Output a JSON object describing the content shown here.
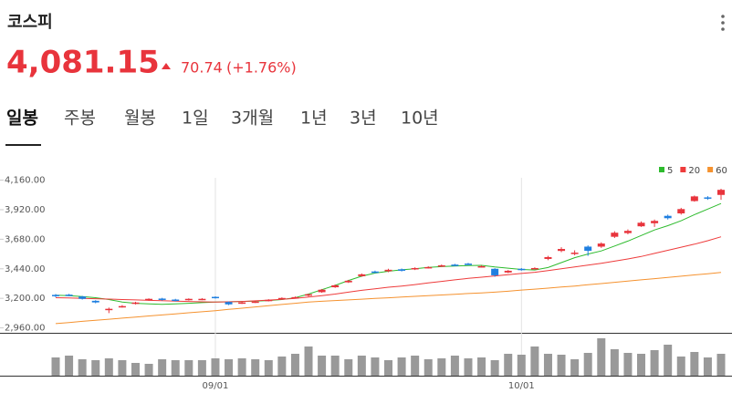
{
  "header": {
    "title": "코스피",
    "price": "4,081.15",
    "change": "70.74",
    "change_percent": "(+1.76%)"
  },
  "tabs": [
    "일봉",
    "주봉",
    "월봉",
    "1일",
    "3개월",
    "1년",
    "3년",
    "10년"
  ],
  "chart_data": {
    "type": "candlestick",
    "categories": [
      null,
      null,
      null,
      null,
      null,
      null,
      null,
      null,
      null,
      null,
      null,
      null,
      "09/01",
      null,
      null,
      null,
      null,
      null,
      null,
      null,
      null,
      null,
      null,
      null,
      null,
      null,
      null,
      null,
      null,
      null,
      null,
      null,
      null,
      null,
      null,
      "10/01",
      null,
      null,
      null,
      null,
      null,
      null,
      null,
      null,
      null,
      null,
      null,
      null,
      null,
      null,
      null
    ],
    "open": [
      3228,
      3230,
      3215,
      3180,
      3105,
      3130,
      3158,
      3185,
      3198,
      3190,
      3188,
      3190,
      3212,
      3170,
      3160,
      3168,
      3180,
      3195,
      3204,
      3222,
      3250,
      3290,
      3330,
      3380,
      3418,
      3420,
      3436,
      3436,
      3448,
      3460,
      3474,
      3482,
      3455,
      3440,
      3410,
      3440,
      3440,
      3520,
      3585,
      3560,
      3620,
      3620,
      3700,
      3730,
      3785,
      3810,
      3870,
      3890,
      3990,
      4020,
      4040
    ],
    "high": [
      3235,
      3236,
      3220,
      3185,
      3125,
      3145,
      3172,
      3200,
      3204,
      3196,
      3200,
      3202,
      3216,
      3175,
      3172,
      3180,
      3193,
      3208,
      3215,
      3238,
      3276,
      3312,
      3350,
      3402,
      3425,
      3440,
      3442,
      3452,
      3460,
      3475,
      3480,
      3488,
      3468,
      3445,
      3430,
      3446,
      3452,
      3545,
      3615,
      3590,
      3630,
      3655,
      3745,
      3760,
      3825,
      3840,
      3880,
      3935,
      4035,
      4030,
      4090
    ],
    "low": [
      3210,
      3218,
      3190,
      3160,
      3080,
      3125,
      3150,
      3180,
      3182,
      3175,
      3182,
      3185,
      3198,
      3145,
      3155,
      3162,
      3175,
      3190,
      3198,
      3215,
      3245,
      3285,
      3325,
      3375,
      3405,
      3412,
      3418,
      3430,
      3442,
      3455,
      3462,
      3470,
      3450,
      3375,
      3405,
      3425,
      3435,
      3510,
      3575,
      3550,
      3545,
      3610,
      3690,
      3720,
      3780,
      3780,
      3840,
      3880,
      3985,
      4000,
      4000
    ],
    "close": [
      3218,
      3225,
      3196,
      3167,
      3115,
      3137,
      3166,
      3196,
      3188,
      3181,
      3196,
      3196,
      3203,
      3151,
      3167,
      3174,
      3188,
      3203,
      3210,
      3233,
      3270,
      3306,
      3343,
      3395,
      3410,
      3432,
      3424,
      3446,
      3454,
      3468,
      3468,
      3476,
      3461,
      3387,
      3424,
      3432,
      3446,
      3535,
      3601,
      3571,
      3586,
      3645,
      3733,
      3748,
      3814,
      3829,
      3851,
      3925,
      4028,
      4010.41,
      4081.15
    ],
    "up_color": "#e8343c",
    "down_color": "#1f7fe0",
    "moving_averages": [
      {
        "name": "5",
        "color": "#2dbb2d",
        "values": [
          3225,
          3222,
          3215,
          3205,
          3190,
          3170,
          3160,
          3155,
          3152,
          3155,
          3160,
          3165,
          3170,
          3172,
          3175,
          3178,
          3182,
          3190,
          3205,
          3235,
          3270,
          3305,
          3345,
          3380,
          3405,
          3420,
          3432,
          3440,
          3452,
          3458,
          3462,
          3466,
          3468,
          3455,
          3445,
          3435,
          3430,
          3450,
          3490,
          3530,
          3560,
          3585,
          3625,
          3665,
          3710,
          3755,
          3790,
          3830,
          3880,
          3925,
          3970
        ]
      },
      {
        "name": "20",
        "color": "#ee3b3b",
        "values": [
          3205,
          3203,
          3200,
          3197,
          3194,
          3190,
          3187,
          3184,
          3181,
          3178,
          3175,
          3172,
          3170,
          3172,
          3175,
          3180,
          3186,
          3192,
          3200,
          3210,
          3222,
          3235,
          3250,
          3265,
          3278,
          3290,
          3300,
          3312,
          3325,
          3338,
          3350,
          3362,
          3372,
          3382,
          3392,
          3402,
          3412,
          3425,
          3440,
          3455,
          3470,
          3485,
          3502,
          3520,
          3540,
          3565,
          3590,
          3615,
          3640,
          3668,
          3700
        ]
      },
      {
        "name": "60",
        "color": "#f5922f",
        "values": [
          2995,
          3004,
          3013,
          3022,
          3030,
          3039,
          3048,
          3057,
          3065,
          3074,
          3083,
          3091,
          3100,
          3110,
          3120,
          3130,
          3140,
          3150,
          3160,
          3170,
          3176,
          3182,
          3187,
          3193,
          3199,
          3204,
          3210,
          3216,
          3222,
          3227,
          3233,
          3239,
          3244,
          3250,
          3258,
          3267,
          3275,
          3283,
          3292,
          3300,
          3310,
          3320,
          3330,
          3340,
          3350,
          3360,
          3370,
          3380,
          3390,
          3400,
          3410
        ]
      }
    ],
    "volume": {
      "color": "#999999",
      "ylim": [
        0,
        45
      ],
      "values": [
        20,
        22,
        18,
        17,
        19,
        17,
        14,
        13,
        18,
        17,
        17,
        17,
        19,
        18,
        19,
        18,
        17,
        21,
        24,
        32,
        22,
        22,
        18,
        22,
        20,
        17,
        20,
        22,
        18,
        19,
        22,
        19,
        20,
        17,
        24,
        23,
        32,
        24,
        23,
        18,
        25,
        41,
        29,
        25,
        24,
        28,
        34,
        21,
        26,
        20,
        24
      ]
    },
    "ylim": [
      2920,
      4290
    ],
    "yticks": [
      {
        "value": 4160,
        "label": "4,160.00"
      },
      {
        "value": 3920,
        "label": "3,920.00"
      },
      {
        "value": 3680,
        "label": "3,680.00"
      },
      {
        "value": 3440,
        "label": "3,440.00"
      },
      {
        "value": 3200,
        "label": "3,200.00"
      },
      {
        "value": 2960,
        "label": "2,960.00"
      }
    ],
    "grid": false
  }
}
